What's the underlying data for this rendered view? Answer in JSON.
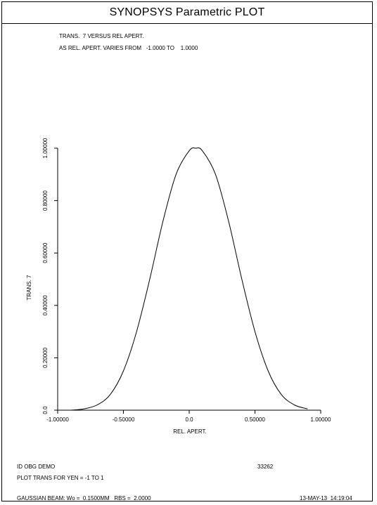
{
  "window": {
    "title": "SYNOPSYS Parametric PLOT"
  },
  "header": {
    "line1": "TRANS.  7 VERSUS REL APERT.",
    "line2": "AS REL. APERT. VARIES FROM   -1.0000 TO    1.0000"
  },
  "footer": {
    "id": "ID OBG DEMO",
    "number": "33262",
    "plot_desc": "PLOT TRANS FOR YEN = -1 TO 1",
    "beam": "GAUSSIAN BEAM: Wo =  0.1500MM   RBS =  2.0000",
    "timestamp": "13-MAY-13  14:19:04"
  },
  "chart_data": {
    "type": "line",
    "xlabel": "REL. APERT.",
    "ylabel": "TRANS.  7",
    "xlim": [
      -1.0,
      1.0
    ],
    "ylim": [
      0.0,
      1.0
    ],
    "xticks": [
      {
        "value": -1.0,
        "label": "-1.00000"
      },
      {
        "value": -0.5,
        "label": "-0.50000"
      },
      {
        "value": 0.0,
        "label": "0.0"
      },
      {
        "value": 0.5,
        "label": "0.50000"
      },
      {
        "value": 1.0,
        "label": "1.00000"
      }
    ],
    "yticks": [
      {
        "value": 0.0,
        "label": "0.0"
      },
      {
        "value": 0.2,
        "label": "0.20000"
      },
      {
        "value": 0.4,
        "label": "0.40000"
      },
      {
        "value": 0.6,
        "label": "0.60000"
      },
      {
        "value": 0.8,
        "label": "0.80000"
      },
      {
        "value": 1.0,
        "label": "1.00000"
      }
    ],
    "grid": false,
    "series": [
      {
        "color": "#000000",
        "x": [
          -0.9,
          -0.8,
          -0.7,
          -0.6,
          -0.5,
          -0.4,
          -0.3,
          -0.2,
          -0.1,
          0.0,
          0.05,
          0.1,
          0.2,
          0.3,
          0.4,
          0.5,
          0.6,
          0.7,
          0.8,
          0.9
        ],
        "y": [
          0.0,
          0.005,
          0.02,
          0.06,
          0.15,
          0.3,
          0.5,
          0.72,
          0.9,
          0.99,
          1.0,
          0.99,
          0.9,
          0.72,
          0.5,
          0.3,
          0.15,
          0.06,
          0.02,
          0.005
        ]
      }
    ]
  }
}
